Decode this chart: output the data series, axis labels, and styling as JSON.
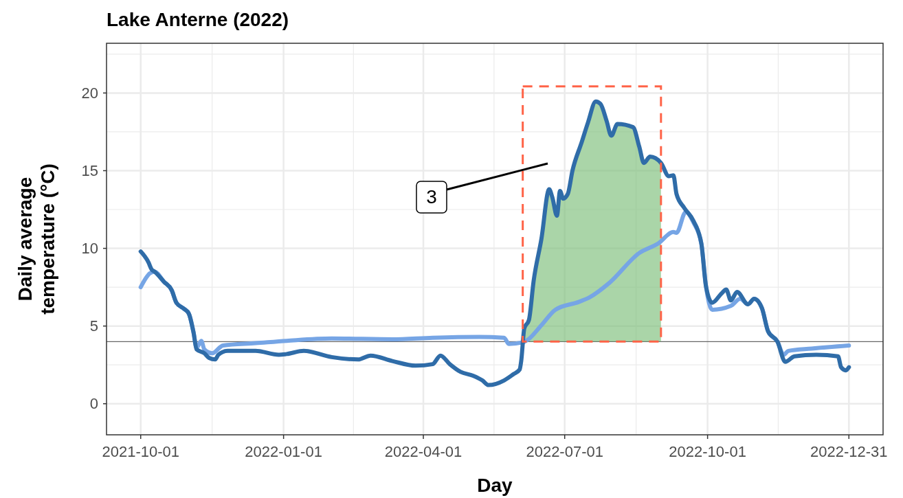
{
  "chart_data": {
    "type": "line",
    "title": "Lake Anterne (2022)",
    "xlabel": "Day",
    "ylabel": "Daily average\ntemperature (°C)",
    "xlim": [
      "2021-09-09",
      "2023-01-22"
    ],
    "xticks": [
      "2021-10-01",
      "2022-01-01",
      "2022-04-01",
      "2022-07-01",
      "2022-10-01",
      "2022-12-31"
    ],
    "ylim": [
      -2,
      23.2
    ],
    "yticks": [
      0,
      5,
      10,
      15,
      20
    ],
    "grid": true,
    "ref_lines": [
      {
        "axis": "y",
        "value": 4,
        "color": "#666666",
        "line_style": "solid"
      }
    ],
    "annotations": [
      "3"
    ],
    "series": [
      {
        "color": "#76a5e5",
        "x": [
          "2021-10-01",
          "2021-10-07",
          "2021-10-10",
          "2021-10-16",
          "2021-10-21",
          "2021-10-24",
          "2021-10-29",
          "2021-11-01",
          "2021-11-04",
          "2021-11-06",
          "2021-11-09",
          "2021-11-11",
          "2021-11-16",
          "2021-11-23",
          "2021-12-14",
          "2022-01-03",
          "2022-02-01",
          "2022-03-12",
          "2022-04-07",
          "2022-05-07",
          "2022-05-23",
          "2022-05-26",
          "2022-06-04",
          "2022-06-07",
          "2022-06-16",
          "2022-06-25",
          "2022-07-10",
          "2022-07-17",
          "2022-07-30",
          "2022-08-18",
          "2022-08-30",
          "2022-09-09",
          "2022-09-11",
          "2022-09-17",
          "2022-09-22",
          "2022-09-27",
          "2022-09-30",
          "2022-10-04",
          "2022-10-16",
          "2022-10-22",
          "2022-10-27",
          "2022-10-31",
          "2022-11-05",
          "2022-11-09",
          "2022-11-15",
          "2022-11-19",
          "2022-11-22",
          "2022-12-07",
          "2022-12-31"
        ],
        "values": [
          7.5,
          8.4,
          8.5,
          7.85,
          7.3,
          6.5,
          6.1,
          5.8,
          4.6,
          3.6,
          4.05,
          3.5,
          3.25,
          3.75,
          3.9,
          4.05,
          4.2,
          4.15,
          4.25,
          4.3,
          4.25,
          3.85,
          3.95,
          4.1,
          5.05,
          6.05,
          6.55,
          6.85,
          7.8,
          9.7,
          10.3,
          11.05,
          11.0,
          12.35,
          11.65,
          10.3,
          7.55,
          6.05,
          6.3,
          6.75,
          6.4,
          6.75,
          6.15,
          4.65,
          4.0,
          3.15,
          3.4,
          3.55,
          3.75
        ]
      },
      {
        "type": "area",
        "color": "#7cbf7a",
        "x": [
          "2022-06-04",
          "2022-06-05",
          "2022-06-08",
          "2022-06-11",
          "2022-06-16",
          "2022-06-21",
          "2022-06-23",
          "2022-06-26",
          "2022-06-28",
          "2022-06-30",
          "2022-07-03",
          "2022-07-06",
          "2022-07-12",
          "2022-07-16",
          "2022-07-21",
          "2022-07-24",
          "2022-07-28",
          "2022-07-31",
          "2022-08-04",
          "2022-08-14",
          "2022-08-18",
          "2022-08-21",
          "2022-08-25",
          "2022-09-01"
        ],
        "values": [
          4.0,
          4.85,
          5.4,
          7.9,
          10.6,
          13.8,
          13.3,
          12.1,
          13.7,
          13.2,
          13.5,
          15.0,
          16.85,
          18.1,
          19.45,
          19.3,
          18.2,
          17.25,
          18.0,
          17.8,
          16.55,
          15.5,
          15.9,
          15.5
        ]
      },
      {
        "color": "#2f6ca8",
        "x": [
          "2021-10-01",
          "2021-10-06",
          "2021-10-08",
          "2021-10-10",
          "2021-10-16",
          "2021-10-21",
          "2021-10-24",
          "2021-10-29",
          "2021-11-01",
          "2021-11-04",
          "2021-11-06",
          "2021-11-11",
          "2021-11-14",
          "2021-11-18",
          "2021-11-20",
          "2021-11-26",
          "2021-12-14",
          "2021-12-29",
          "2022-01-03",
          "2022-01-14",
          "2022-02-01",
          "2022-02-18",
          "2022-02-26",
          "2022-03-12",
          "2022-03-27",
          "2022-04-07",
          "2022-04-12",
          "2022-04-18",
          "2022-04-25",
          "2022-05-03",
          "2022-05-09",
          "2022-05-13",
          "2022-05-23",
          "2022-05-29",
          "2022-06-02",
          "2022-06-03",
          "2022-06-05",
          "2022-06-08",
          "2022-06-11",
          "2022-06-16",
          "2022-06-21",
          "2022-06-23",
          "2022-06-26",
          "2022-06-28",
          "2022-06-30",
          "2022-07-03",
          "2022-07-06",
          "2022-07-12",
          "2022-07-16",
          "2022-07-21",
          "2022-07-24",
          "2022-07-28",
          "2022-07-31",
          "2022-08-04",
          "2022-08-14",
          "2022-08-18",
          "2022-08-21",
          "2022-08-25",
          "2022-09-01",
          "2022-09-06",
          "2022-09-09",
          "2022-09-11",
          "2022-09-16",
          "2022-09-22",
          "2022-09-27",
          "2022-09-30",
          "2022-10-04",
          "2022-10-10",
          "2022-10-13",
          "2022-10-16",
          "2022-10-20",
          "2022-10-27",
          "2022-10-31",
          "2022-11-05",
          "2022-11-09",
          "2022-11-15",
          "2022-11-20",
          "2022-11-26",
          "2022-12-10",
          "2022-12-24",
          "2022-12-26",
          "2022-12-29",
          "2022-12-31"
        ],
        "values": [
          9.8,
          9.1,
          8.65,
          8.5,
          7.85,
          7.3,
          6.5,
          6.1,
          5.8,
          4.6,
          3.5,
          3.25,
          2.95,
          2.85,
          3.15,
          3.4,
          3.4,
          3.15,
          3.2,
          3.4,
          3.0,
          2.85,
          3.1,
          2.75,
          2.45,
          2.55,
          3.1,
          2.55,
          2.05,
          1.8,
          1.5,
          1.2,
          1.5,
          1.9,
          2.2,
          2.75,
          4.85,
          5.4,
          7.9,
          10.6,
          13.8,
          13.3,
          12.1,
          13.7,
          13.2,
          13.5,
          15.0,
          16.85,
          18.1,
          19.45,
          19.3,
          18.2,
          17.25,
          18.0,
          17.8,
          16.55,
          15.5,
          15.9,
          15.5,
          14.65,
          14.7,
          13.5,
          12.6,
          11.75,
          10.3,
          7.55,
          6.5,
          7.1,
          7.35,
          6.65,
          7.2,
          6.4,
          6.75,
          6.15,
          4.65,
          4.0,
          2.7,
          3.05,
          3.15,
          3.05,
          2.35,
          2.15,
          2.35
        ]
      }
    ]
  }
}
